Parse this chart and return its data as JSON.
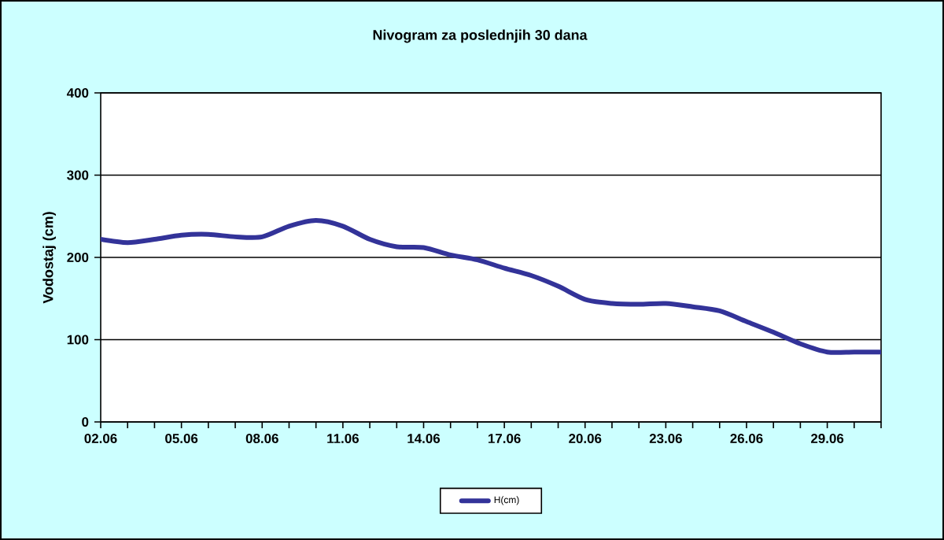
{
  "chart_data": {
    "type": "line",
    "title": "Nivogram za poslednjih 30 dana",
    "ylabel": "Vodostaj (cm)",
    "categories": [
      "02.06",
      null,
      null,
      "05.06",
      null,
      null,
      "08.06",
      null,
      null,
      "11.06",
      null,
      null,
      "14.06",
      null,
      null,
      "17.06",
      null,
      null,
      "20.06",
      null,
      null,
      "23.06",
      null,
      null,
      "26.06",
      null,
      null,
      "29.06",
      null,
      null
    ],
    "series": [
      {
        "name": "H(cm)",
        "color": "#333399",
        "values": [
          222,
          218,
          222,
          227,
          228,
          225,
          225,
          238,
          245,
          238,
          222,
          213,
          212,
          203,
          197,
          187,
          178,
          165,
          149,
          144,
          143,
          144,
          140,
          135,
          122,
          109,
          95,
          85,
          85,
          85
        ]
      }
    ],
    "ylim": [
      0,
      400
    ],
    "yticks": [
      0,
      100,
      200,
      300,
      400
    ],
    "grid": "y",
    "legend": "bottom",
    "marker": "none",
    "line_style": "solid"
  }
}
